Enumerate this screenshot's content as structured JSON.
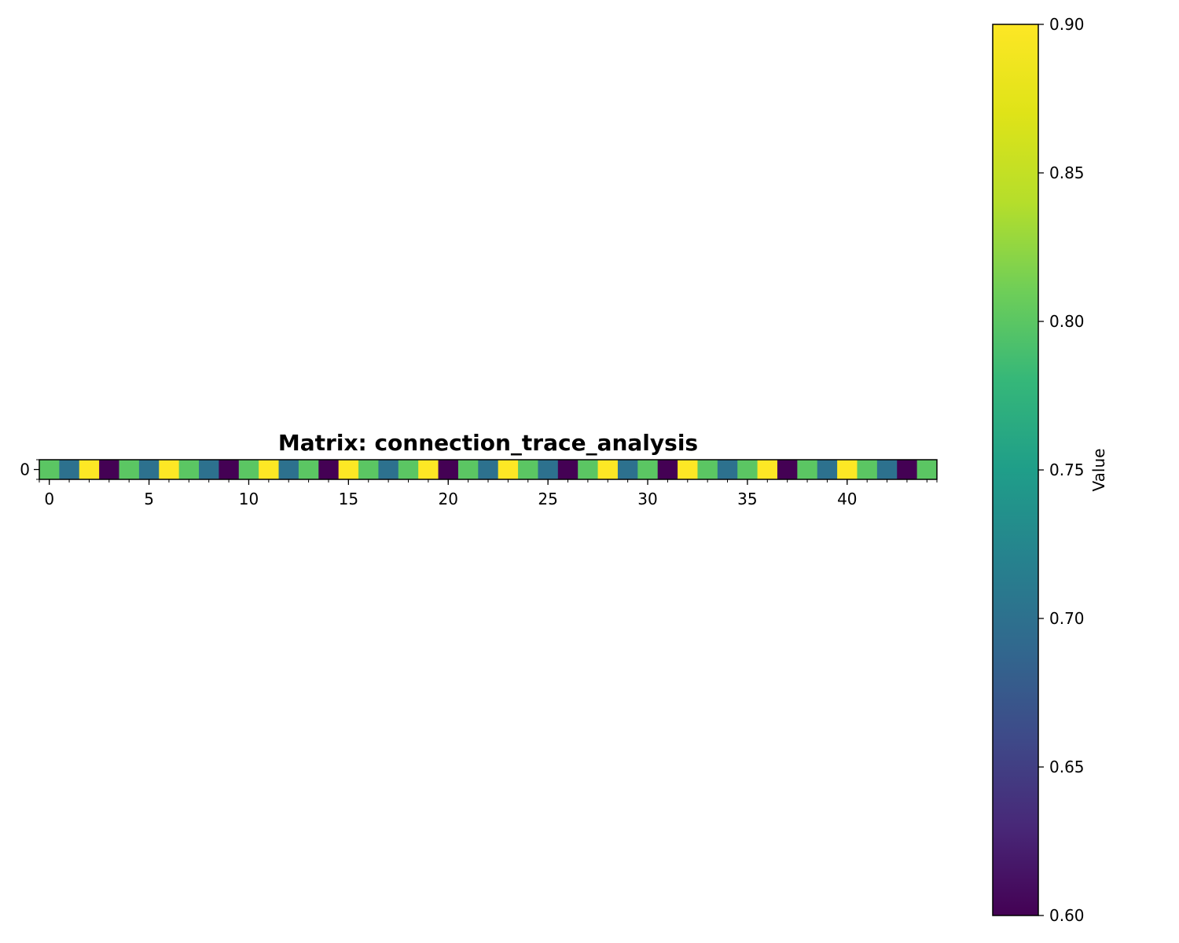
{
  "chart_data": {
    "type": "heatmap",
    "title": "Matrix: connection_trace_analysis",
    "rows": 1,
    "row_tick_labels": [
      "0"
    ],
    "x_tick_labels": [
      "0",
      "5",
      "10",
      "15",
      "20",
      "25",
      "30",
      "35",
      "40"
    ],
    "x_ticks": [
      0,
      5,
      10,
      15,
      20,
      25,
      30,
      35,
      40
    ],
    "values": [
      [
        0.8,
        0.7,
        0.9,
        0.6,
        0.8,
        0.7,
        0.9,
        0.8,
        0.7,
        0.6,
        0.8,
        0.9,
        0.7,
        0.8,
        0.6,
        0.9,
        0.8,
        0.7,
        0.8,
        0.9,
        0.6,
        0.8,
        0.7,
        0.9,
        0.8,
        0.7,
        0.6,
        0.8,
        0.9,
        0.7,
        0.8,
        0.6,
        0.9,
        0.8,
        0.7,
        0.8,
        0.9,
        0.6,
        0.8,
        0.7,
        0.9,
        0.8,
        0.7,
        0.6,
        0.8
      ]
    ],
    "colormap": "viridis",
    "colorbar": {
      "label": "Value",
      "range": [
        0.6,
        0.9
      ],
      "tick_values": [
        0.6,
        0.65,
        0.7,
        0.75,
        0.8,
        0.85,
        0.9
      ],
      "tick_labels": [
        "0.60",
        "0.65",
        "0.70",
        "0.75",
        "0.80",
        "0.85",
        "0.90"
      ],
      "position": "right"
    }
  }
}
